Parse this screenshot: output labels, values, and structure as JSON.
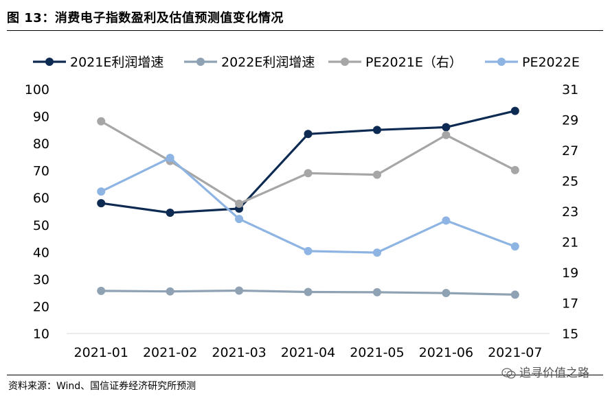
{
  "figure": {
    "title": "图 13：消费电子指数盈利及估值预测值变化情况",
    "source": "资料来源：Wind、国信证券经济研究所预测",
    "watermark": "追寻价值之路"
  },
  "chart_data": {
    "type": "line",
    "categories": [
      "2021-01",
      "2021-02",
      "2021-03",
      "2021-04",
      "2021-05",
      "2021-06",
      "2021-07"
    ],
    "y_left": {
      "ylim": [
        10,
        100
      ],
      "ticks": [
        10,
        20,
        30,
        40,
        50,
        60,
        70,
        80,
        90,
        100
      ]
    },
    "y_right": {
      "ylim": [
        15,
        31
      ],
      "ticks": [
        15,
        17,
        19,
        21,
        23,
        25,
        27,
        29,
        31
      ]
    },
    "legend_position": "top",
    "series": [
      {
        "name": "2021E利润增速",
        "axis": "left",
        "color": "#0d2a52",
        "values": [
          58,
          54.5,
          56,
          83.5,
          85,
          86,
          92
        ]
      },
      {
        "name": "2022E利润增速",
        "axis": "left",
        "color": "#8fa2b4",
        "values": [
          25.7,
          25.5,
          25.8,
          25.3,
          25.2,
          24.9,
          24.3
        ]
      },
      {
        "name": "PE2021E（右）",
        "axis": "right",
        "color": "#a6a6a6",
        "values": [
          28.9,
          26.3,
          23.5,
          25.5,
          25.4,
          28.0,
          25.7
        ]
      },
      {
        "name": "PE2022E",
        "axis": "right",
        "color": "#8db4e2",
        "values": [
          24.3,
          26.5,
          22.5,
          20.4,
          20.3,
          22.4,
          20.7
        ]
      }
    ]
  }
}
